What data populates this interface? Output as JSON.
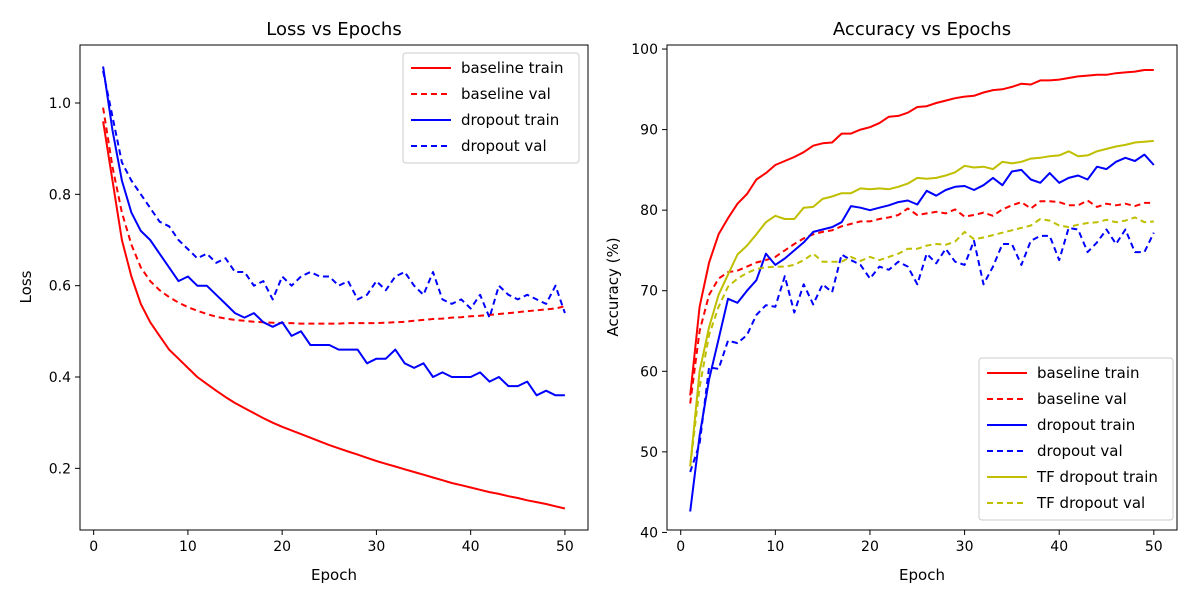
{
  "chart_data": [
    {
      "type": "line",
      "title": "Loss vs Epochs",
      "xlabel": "Epoch",
      "ylabel": "Loss",
      "xlim": [
        -1.45,
        52.45
      ],
      "ylim": [
        0.065,
        1.127
      ],
      "xticks": [
        "0",
        "10",
        "20",
        "30",
        "40",
        "50"
      ],
      "yticks": [
        "0.2",
        "0.4",
        "0.6",
        "0.8",
        "1.0"
      ],
      "grid": false,
      "legend_position": "upper right",
      "x": [
        1,
        2,
        3,
        4,
        5,
        6,
        7,
        8,
        9,
        10,
        11,
        12,
        13,
        14,
        15,
        16,
        17,
        18,
        19,
        20,
        21,
        22,
        23,
        24,
        25,
        26,
        27,
        28,
        29,
        30,
        31,
        32,
        33,
        34,
        35,
        36,
        37,
        38,
        39,
        40,
        41,
        42,
        43,
        44,
        45,
        46,
        47,
        48,
        49,
        50
      ],
      "series": [
        {
          "name": "baseline train",
          "color": "#ff0000",
          "style": "solid",
          "values": [
            0.96,
            0.83,
            0.7,
            0.62,
            0.56,
            0.52,
            0.49,
            0.46,
            0.44,
            0.42,
            0.4,
            0.385,
            0.37,
            0.356,
            0.343,
            0.332,
            0.321,
            0.31,
            0.3,
            0.291,
            0.283,
            0.275,
            0.267,
            0.259,
            0.251,
            0.244,
            0.237,
            0.23,
            0.223,
            0.216,
            0.21,
            0.204,
            0.198,
            0.192,
            0.186,
            0.18,
            0.174,
            0.168,
            0.163,
            0.158,
            0.153,
            0.148,
            0.144,
            0.139,
            0.135,
            0.13,
            0.126,
            0.122,
            0.117,
            0.112
          ]
        },
        {
          "name": "baseline val",
          "color": "#ff0000",
          "style": "dashed",
          "values": [
            0.99,
            0.86,
            0.76,
            0.69,
            0.64,
            0.61,
            0.59,
            0.575,
            0.563,
            0.553,
            0.545,
            0.538,
            0.532,
            0.528,
            0.525,
            0.523,
            0.521,
            0.52,
            0.519,
            0.518,
            0.518,
            0.517,
            0.517,
            0.517,
            0.517,
            0.517,
            0.518,
            0.518,
            0.518,
            0.518,
            0.519,
            0.52,
            0.521,
            0.523,
            0.525,
            0.527,
            0.528,
            0.53,
            0.531,
            0.533,
            0.534,
            0.536,
            0.538,
            0.54,
            0.542,
            0.544,
            0.546,
            0.548,
            0.55,
            0.555
          ]
        },
        {
          "name": "dropout train",
          "color": "#0000ff",
          "style": "solid",
          "values": [
            1.08,
            0.94,
            0.83,
            0.76,
            0.72,
            0.7,
            0.67,
            0.64,
            0.61,
            0.62,
            0.6,
            0.6,
            0.58,
            0.56,
            0.54,
            0.53,
            0.54,
            0.52,
            0.51,
            0.52,
            0.49,
            0.5,
            0.47,
            0.47,
            0.47,
            0.46,
            0.46,
            0.46,
            0.43,
            0.44,
            0.44,
            0.46,
            0.43,
            0.42,
            0.43,
            0.4,
            0.41,
            0.4,
            0.4,
            0.4,
            0.41,
            0.39,
            0.4,
            0.38,
            0.38,
            0.39,
            0.36,
            0.37,
            0.36,
            0.36
          ]
        },
        {
          "name": "dropout val",
          "color": "#0000ff",
          "style": "dashed",
          "values": [
            1.07,
            0.97,
            0.87,
            0.83,
            0.8,
            0.77,
            0.74,
            0.73,
            0.7,
            0.68,
            0.66,
            0.67,
            0.65,
            0.66,
            0.63,
            0.63,
            0.6,
            0.61,
            0.57,
            0.62,
            0.6,
            0.62,
            0.63,
            0.62,
            0.62,
            0.6,
            0.61,
            0.57,
            0.58,
            0.61,
            0.59,
            0.62,
            0.63,
            0.6,
            0.58,
            0.63,
            0.57,
            0.56,
            0.57,
            0.55,
            0.58,
            0.53,
            0.6,
            0.58,
            0.57,
            0.58,
            0.57,
            0.56,
            0.6,
            0.54
          ]
        }
      ]
    },
    {
      "type": "line",
      "title": "Accuracy vs Epochs",
      "xlabel": "Epoch",
      "ylabel": "Accuracy (%)",
      "xlim": [
        -1.45,
        52.45
      ],
      "ylim": [
        40.3,
        100.5
      ],
      "xticks": [
        "0",
        "10",
        "20",
        "30",
        "40",
        "50"
      ],
      "yticks": [
        "40",
        "50",
        "60",
        "70",
        "80",
        "90",
        "100"
      ],
      "grid": false,
      "legend_position": "lower right",
      "x": [
        1,
        2,
        3,
        4,
        5,
        6,
        7,
        8,
        9,
        10,
        11,
        12,
        13,
        14,
        15,
        16,
        17,
        18,
        19,
        20,
        21,
        22,
        23,
        24,
        25,
        26,
        27,
        28,
        29,
        30,
        31,
        32,
        33,
        34,
        35,
        36,
        37,
        38,
        39,
        40,
        41,
        42,
        43,
        44,
        45,
        46,
        47,
        48,
        49,
        50
      ],
      "series": [
        {
          "name": "baseline train",
          "color": "#ff0000",
          "style": "solid",
          "values": [
            57,
            68,
            73.5,
            77,
            79,
            80.8,
            82,
            83.8,
            84.6,
            85.6,
            86.1,
            86.6,
            87.2,
            88,
            88.3,
            88.4,
            89.5,
            89.5,
            90,
            90.3,
            90.8,
            91.6,
            91.7,
            92.1,
            92.8,
            92.9,
            93.3,
            93.6,
            93.9,
            94.1,
            94.2,
            94.6,
            94.9,
            95,
            95.3,
            95.7,
            95.6,
            96.1,
            96.1,
            96.2,
            96.4,
            96.6,
            96.7,
            96.8,
            96.8,
            97,
            97.1,
            97.2,
            97.4,
            97.4
          ]
        },
        {
          "name": "baseline val",
          "color": "#ff0000",
          "style": "dashed",
          "values": [
            56,
            65,
            69.5,
            71.5,
            72.3,
            72.5,
            73,
            73.5,
            73.8,
            74.2,
            75,
            75.8,
            76.5,
            77,
            77.3,
            77.5,
            78,
            78.3,
            78.6,
            78.6,
            78.9,
            79.1,
            79.4,
            80.2,
            79.4,
            79.6,
            79.8,
            79.6,
            80.1,
            79.2,
            79.4,
            79.7,
            79.3,
            80.1,
            80.6,
            81,
            80.2,
            81.1,
            81.1,
            81,
            80.6,
            80.6,
            81.2,
            80.4,
            80.8,
            80.6,
            80.8,
            80.5,
            80.9,
            80.9
          ]
        },
        {
          "name": "dropout train",
          "color": "#0000ff",
          "style": "solid",
          "values": [
            42.6,
            52,
            59,
            64,
            69,
            68.5,
            70,
            71.3,
            74.6,
            73.2,
            74,
            75,
            76,
            77.3,
            77.6,
            77.9,
            78.5,
            80.5,
            80.3,
            80,
            80.3,
            80.6,
            81,
            81.2,
            80.7,
            82.4,
            81.8,
            82.5,
            82.9,
            83,
            82.5,
            83.1,
            84,
            83.1,
            84.8,
            85,
            83.8,
            83.4,
            84.6,
            83.4,
            84,
            84.3,
            83.8,
            85.4,
            85.1,
            86,
            86.5,
            86.1,
            86.9,
            85.6
          ]
        },
        {
          "name": "dropout val",
          "color": "#0000ff",
          "style": "dashed",
          "values": [
            47.5,
            51,
            60.5,
            60.3,
            63.8,
            63.5,
            64.5,
            67,
            68.2,
            68,
            71.8,
            67.3,
            70.8,
            68.3,
            70.8,
            69.8,
            74.5,
            73.8,
            73.2,
            71.5,
            73,
            72.6,
            73.6,
            73,
            70.8,
            74.6,
            73.4,
            75.2,
            73.6,
            73.2,
            76.2,
            70.8,
            73,
            75.8,
            75.8,
            73.2,
            76.2,
            76.8,
            76.8,
            73.8,
            77.8,
            77.6,
            74.8,
            76,
            77.6,
            75.8,
            77.6,
            74.8,
            74.8,
            77.2
          ]
        },
        {
          "name": "TF dropout train",
          "color": "#bfbf00",
          "style": "solid",
          "values": [
            48.2,
            60,
            65.5,
            69.5,
            72,
            74.5,
            75.6,
            77,
            78.5,
            79.3,
            78.9,
            78.9,
            80.3,
            80.4,
            81.4,
            81.7,
            82.1,
            82.1,
            82.7,
            82.6,
            82.7,
            82.6,
            82.9,
            83.3,
            84,
            83.9,
            84,
            84.3,
            84.7,
            85.5,
            85.3,
            85.4,
            85.1,
            86,
            85.8,
            86,
            86.4,
            86.5,
            86.7,
            86.8,
            87.3,
            86.7,
            86.8,
            87.3,
            87.6,
            87.9,
            88.1,
            88.4,
            88.5,
            88.6
          ]
        },
        {
          "name": "TF dropout val",
          "color": "#bfbf00",
          "style": "dashed",
          "values": [
            48.2,
            58,
            64.5,
            68,
            70.5,
            71.5,
            72.2,
            72.7,
            72.9,
            73,
            73,
            73.2,
            73.8,
            74.6,
            73.6,
            73.6,
            73.6,
            74.2,
            73.7,
            74.2,
            73.8,
            74.2,
            74.6,
            75.2,
            75.2,
            75.6,
            75.8,
            75.7,
            76.1,
            77.3,
            76.4,
            76.6,
            76.9,
            77.2,
            77.5,
            77.8,
            78.1,
            78.9,
            78.7,
            78.1,
            77.9,
            78.2,
            78.4,
            78.5,
            78.8,
            78.5,
            78.7,
            79.1,
            78.5,
            78.6
          ]
        }
      ]
    }
  ]
}
